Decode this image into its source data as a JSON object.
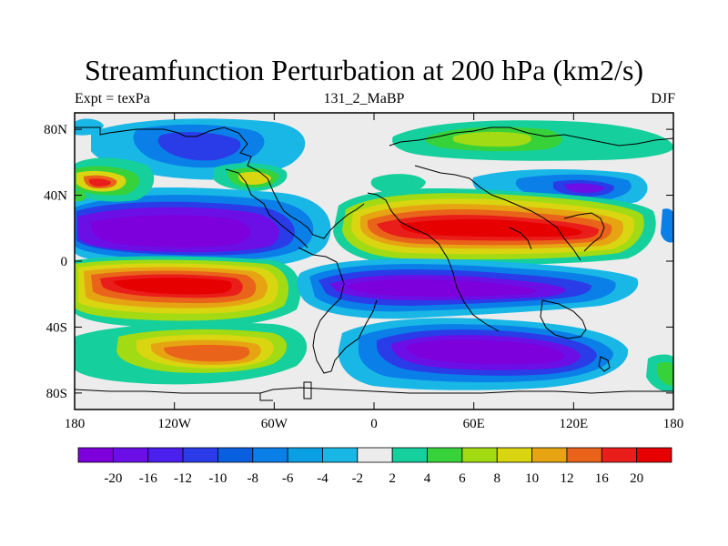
{
  "title": "Streamfunction Perturbation at 200 hPa (km2/s)",
  "subtitle_left": "Expt = texPa",
  "subtitle_center": "131_2_MaBP",
  "subtitle_right": "DJF",
  "chart_data": {
    "type": "filled-contour-map",
    "variable": "Streamfunction Perturbation",
    "level": "200 hPa",
    "units": "km2/s",
    "season": "DJF",
    "lon_range": [
      -180,
      180
    ],
    "lat_range": [
      -90,
      90
    ],
    "x_ticks": [
      {
        "lon": -180,
        "label": "180"
      },
      {
        "lon": -120,
        "label": "120W"
      },
      {
        "lon": -60,
        "label": "60W"
      },
      {
        "lon": 0,
        "label": "0"
      },
      {
        "lon": 60,
        "label": "60E"
      },
      {
        "lon": 120,
        "label": "120E"
      },
      {
        "lon": 180,
        "label": "180"
      }
    ],
    "y_ticks": [
      {
        "lat": 80,
        "label": "80N"
      },
      {
        "lat": 40,
        "label": "40N"
      },
      {
        "lat": 0,
        "label": "0"
      },
      {
        "lat": -40,
        "label": "40S"
      },
      {
        "lat": -80,
        "label": "80S"
      }
    ],
    "colorbar": {
      "labels": [
        "-20",
        "-16",
        "-12",
        "-10",
        "-8",
        "-6",
        "-4",
        "-2",
        "2",
        "4",
        "6",
        "8",
        "10",
        "12",
        "16",
        "20"
      ],
      "colors": [
        "#7d00dc",
        "#6b0fe6",
        "#4b1fee",
        "#2a3be8",
        "#0a5fe0",
        "#0a7fe8",
        "#0a9fe2",
        "#19b7e6",
        "#ececec",
        "#15cf9c",
        "#37d23a",
        "#a2db13",
        "#d9d611",
        "#e6a412",
        "#e9631a",
        "#e91e1a",
        "#e60000"
      ]
    },
    "features": [
      {
        "name": "tropical-anticyclone-asia",
        "sign": "positive",
        "center": [
          80,
          22
        ],
        "peak": 20
      },
      {
        "name": "tropical-low-pacific-north",
        "sign": "negative",
        "center": [
          -110,
          22
        ],
        "peak": -20
      },
      {
        "name": "pacific-high-south",
        "sign": "positive",
        "center": [
          -120,
          -20
        ],
        "peak": 20
      },
      {
        "name": "indian-ocean-low",
        "sign": "negative",
        "center": [
          70,
          -15
        ],
        "peak": -20
      },
      {
        "name": "southern-ocean-low",
        "sign": "negative",
        "center": [
          70,
          -58
        ],
        "peak": -20
      },
      {
        "name": "south-pacific-high",
        "sign": "positive",
        "center": [
          -80,
          -60
        ],
        "peak": 16
      },
      {
        "name": "north-pacific-high",
        "sign": "positive",
        "center": [
          -155,
          45
        ],
        "peak": 16
      },
      {
        "name": "arctic-low-north-america",
        "sign": "negative",
        "center": [
          -110,
          72
        ],
        "peak": -8
      },
      {
        "name": "eurasian-arctic-high",
        "sign": "positive",
        "center": [
          70,
          72
        ],
        "peak": 6
      }
    ]
  }
}
